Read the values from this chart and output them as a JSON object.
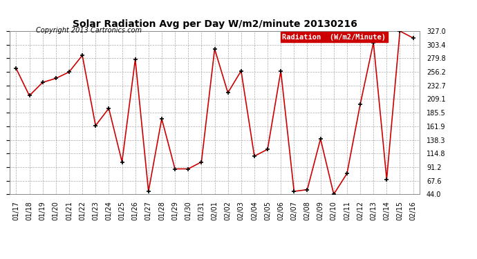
{
  "title": "Solar Radiation Avg per Day W/m2/minute 20130216",
  "copyright": "Copyright 2013 Cartronics.com",
  "legend_label": "Radiation  (W/m2/Minute)",
  "dates": [
    "01/17",
    "01/18",
    "01/19",
    "01/20",
    "01/21",
    "01/22",
    "01/23",
    "01/24",
    "01/25",
    "01/26",
    "01/27",
    "01/28",
    "01/29",
    "01/30",
    "01/31",
    "02/01",
    "02/02",
    "02/03",
    "02/04",
    "02/05",
    "02/06",
    "02/07",
    "02/08",
    "02/09",
    "02/10",
    "02/11",
    "02/12",
    "02/13",
    "02/14",
    "02/15",
    "02/16"
  ],
  "values": [
    262,
    215,
    238,
    245,
    256,
    285,
    163,
    193,
    100,
    278,
    49,
    175,
    88,
    88,
    100,
    296,
    220,
    258,
    110,
    122,
    258,
    49,
    52,
    140,
    44,
    80,
    200,
    307,
    70,
    327,
    315
  ],
  "line_color": "#cc0000",
  "marker_color": "#000000",
  "bg_color": "#ffffff",
  "grid_color": "#aaaaaa",
  "legend_bg": "#cc0000",
  "legend_fg": "#ffffff",
  "ylim_min": 44.0,
  "ylim_max": 327.0,
  "yticks": [
    44.0,
    67.6,
    91.2,
    114.8,
    138.3,
    161.9,
    185.5,
    209.1,
    232.7,
    256.2,
    279.8,
    303.4,
    327.0
  ]
}
